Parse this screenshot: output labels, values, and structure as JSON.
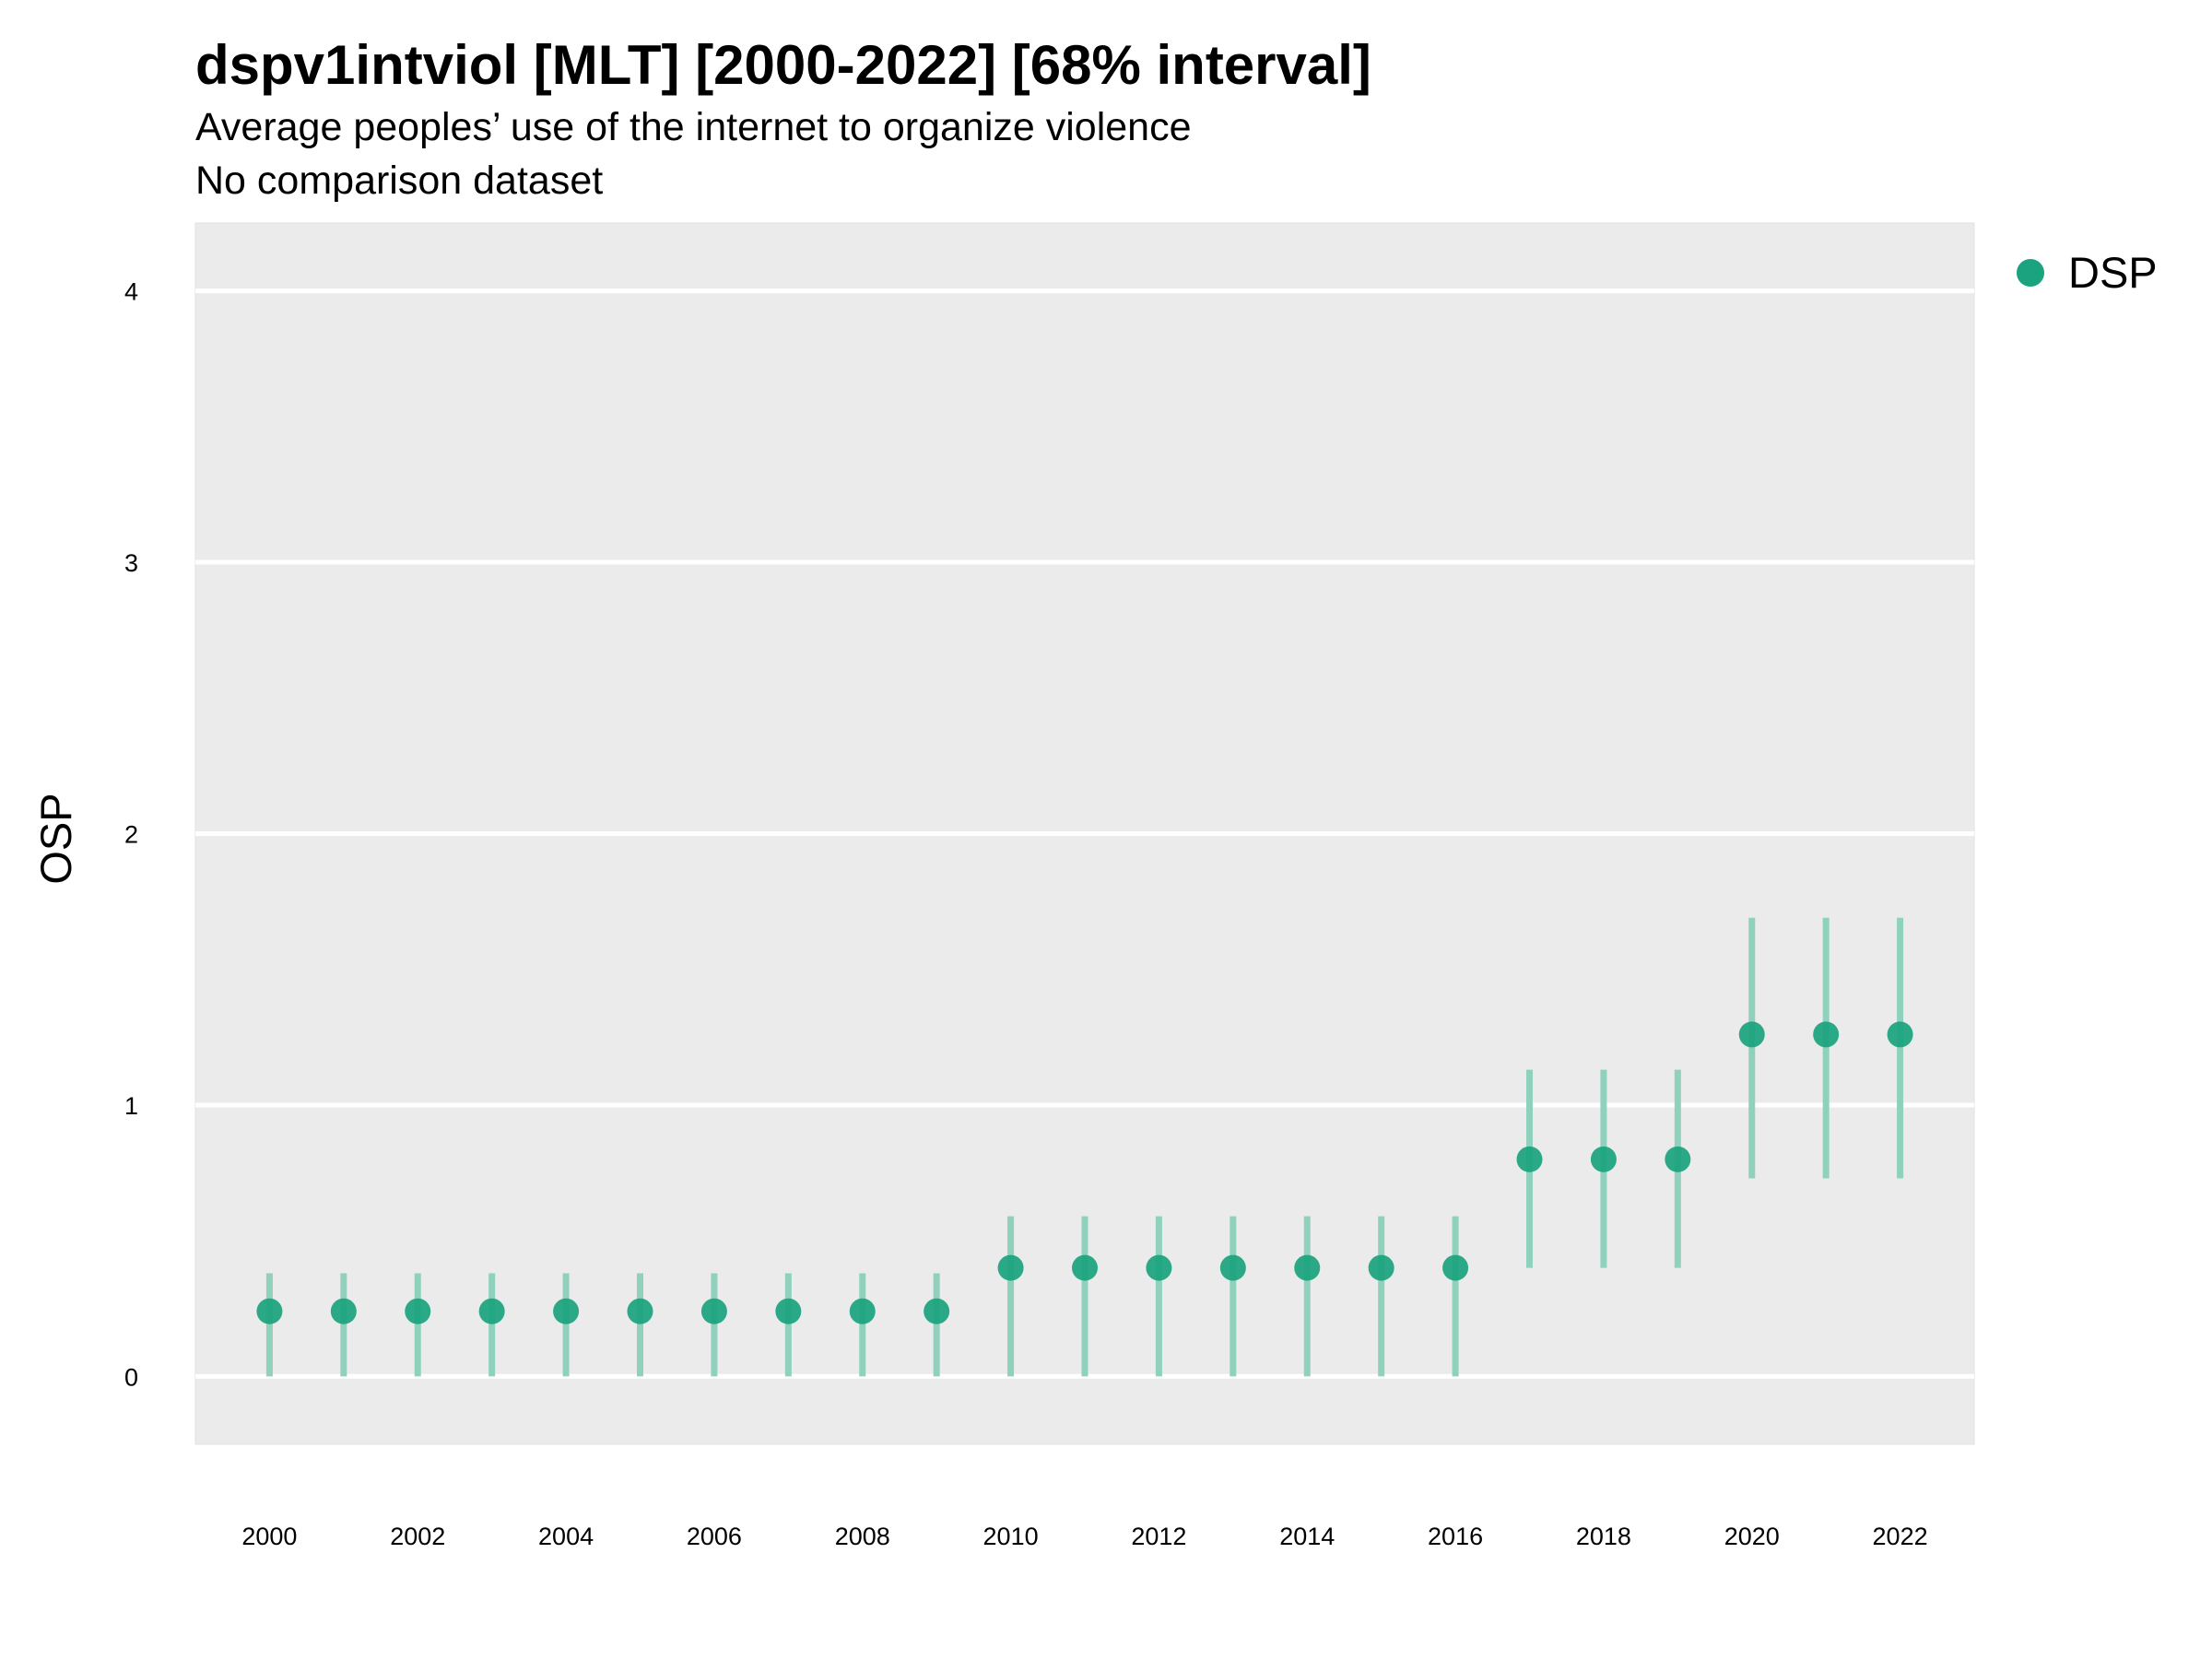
{
  "header": {
    "title": "dspv1intviol [MLT] [2000-2022] [68% interval]",
    "subtitle": "Average peoples’ use of the internet to organize violence",
    "comparison": "No comparison dataset"
  },
  "legend": {
    "label": "DSP",
    "color": "#1aa37e",
    "placement": "right"
  },
  "chart_data": {
    "type": "scatter",
    "ylabel": "OSP",
    "xlabel": "",
    "ylim": [
      -0.25,
      4.25
    ],
    "xlim": [
      1999.0,
      2023.0
    ],
    "yticks": [
      0,
      1,
      2,
      3,
      4
    ],
    "xticks": [
      2000,
      2002,
      2004,
      2006,
      2008,
      2010,
      2012,
      2014,
      2016,
      2018,
      2020,
      2022
    ],
    "grid": true,
    "point_color": "#1aa37e",
    "interval_color": "#8fd1bd",
    "panel_color": "#ebebeb",
    "series": [
      {
        "name": "DSP",
        "x": [
          2000,
          2001,
          2002,
          2003,
          2004,
          2005,
          2006,
          2007,
          2008,
          2009,
          2010,
          2011,
          2012,
          2013,
          2014,
          2015,
          2016,
          2017,
          2018,
          2019,
          2020,
          2021,
          2022
        ],
        "y": [
          0.24,
          0.24,
          0.24,
          0.24,
          0.24,
          0.24,
          0.24,
          0.24,
          0.24,
          0.24,
          0.4,
          0.4,
          0.4,
          0.4,
          0.4,
          0.4,
          0.4,
          0.8,
          0.8,
          0.8,
          1.26,
          1.26,
          1.26
        ],
        "lower": [
          0,
          0,
          0,
          0,
          0,
          0,
          0,
          0,
          0,
          0,
          0,
          0,
          0,
          0,
          0,
          0,
          0,
          0.4,
          0.4,
          0.4,
          0.73,
          0.73,
          0.73
        ],
        "upper": [
          0.38,
          0.38,
          0.38,
          0.38,
          0.38,
          0.38,
          0.38,
          0.38,
          0.38,
          0.38,
          0.59,
          0.59,
          0.59,
          0.59,
          0.59,
          0.59,
          0.59,
          1.13,
          1.13,
          1.13,
          1.69,
          1.69,
          1.69
        ]
      }
    ]
  }
}
